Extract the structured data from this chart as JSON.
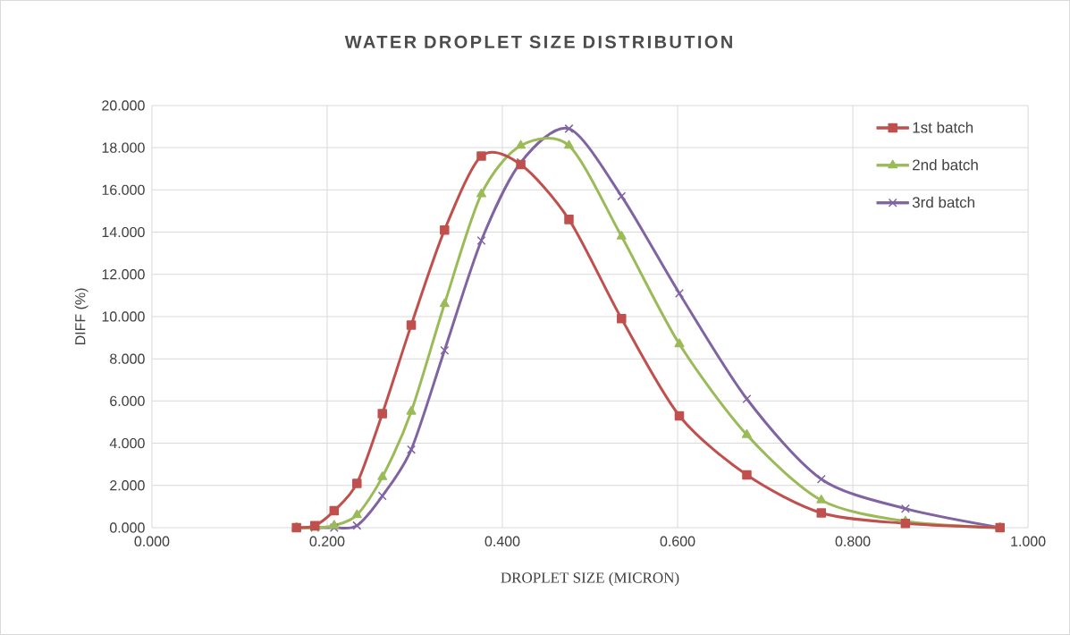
{
  "chart_data": {
    "type": "line",
    "title": "WATER DROPLET SIZE DISTRIBUTION",
    "xlabel": "DROPLET SIZE (MICRON)",
    "ylabel": "DIFF (%)",
    "x": [
      0.165,
      0.186,
      0.208,
      0.234,
      0.263,
      0.296,
      0.334,
      0.376,
      0.421,
      0.476,
      0.536,
      0.602,
      0.679,
      0.764,
      0.86,
      0.968
    ],
    "series": [
      {
        "name": "1st batch",
        "color": "#c0504d",
        "marker": "square",
        "values": [
          0,
          0.1,
          0.8,
          2.1,
          5.4,
          9.6,
          14.1,
          17.6,
          17.2,
          14.6,
          9.9,
          5.3,
          2.5,
          0.7,
          0.2,
          0
        ]
      },
      {
        "name": "2nd batch",
        "color": "#9bbb59",
        "marker": "triangle",
        "values": [
          0,
          0,
          0.1,
          0.6,
          2.4,
          5.5,
          10.6,
          15.8,
          18.1,
          18.1,
          13.8,
          8.7,
          4.4,
          1.3,
          0.3,
          0
        ]
      },
      {
        "name": "3rd batch",
        "color": "#8064a2",
        "marker": "cross",
        "values": [
          0,
          0,
          0,
          0.1,
          1.5,
          3.7,
          8.4,
          13.6,
          17.3,
          18.9,
          15.7,
          11.1,
          6.1,
          2.3,
          0.9,
          0
        ]
      }
    ],
    "xlim": [
      0,
      1
    ],
    "ylim": [
      0,
      20
    ],
    "xticks": [
      {
        "value": 0,
        "label": "0.000"
      },
      {
        "value": 0.2,
        "label": "0.200"
      },
      {
        "value": 0.4,
        "label": "0.400"
      },
      {
        "value": 0.6,
        "label": "0.600"
      },
      {
        "value": 0.8,
        "label": "0.800"
      },
      {
        "value": 1,
        "label": "1.000"
      }
    ],
    "yticks": [
      {
        "value": 0,
        "label": "0.000"
      },
      {
        "value": 2,
        "label": "2.000"
      },
      {
        "value": 4,
        "label": "4.000"
      },
      {
        "value": 6,
        "label": "6.000"
      },
      {
        "value": 8,
        "label": "8.000"
      },
      {
        "value": 10,
        "label": "10.000"
      },
      {
        "value": 12,
        "label": "12.000"
      },
      {
        "value": 14,
        "label": "14.000"
      },
      {
        "value": 16,
        "label": "16.000"
      },
      {
        "value": 18,
        "label": "18.000"
      },
      {
        "value": 20,
        "label": "20.000"
      }
    ],
    "grid": true,
    "legend": "top right"
  }
}
